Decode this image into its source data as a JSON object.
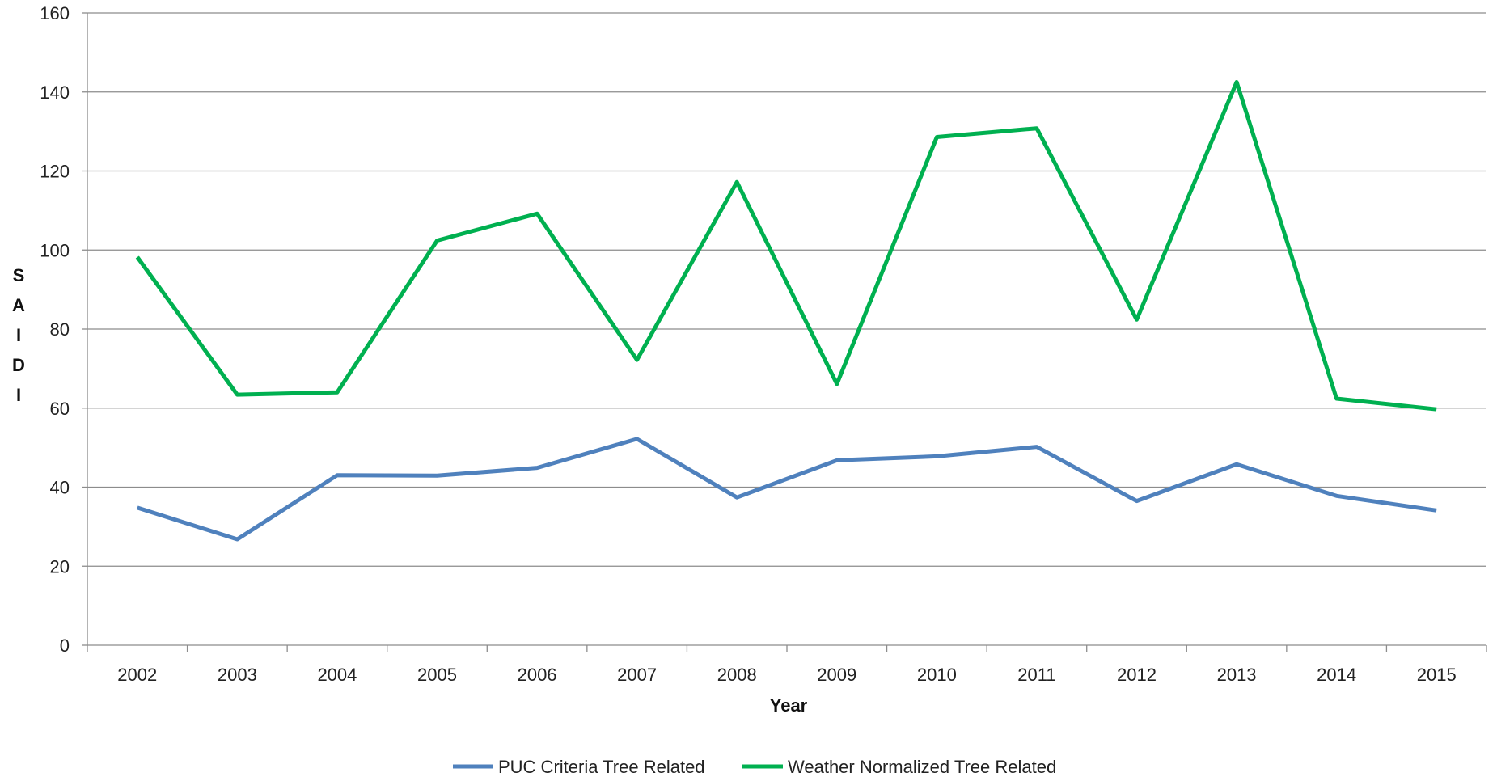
{
  "chart_data": {
    "type": "line",
    "xlabel": "Year",
    "ylabel": "SAIDI",
    "ylim": [
      0,
      160
    ],
    "y_ticks": [
      0,
      20,
      40,
      60,
      80,
      100,
      120,
      140,
      160
    ],
    "grid": true,
    "legend_position": "bottom",
    "categories": [
      "2002",
      "2003",
      "2004",
      "2005",
      "2006",
      "2007",
      "2008",
      "2009",
      "2010",
      "2011",
      "2012",
      "2013",
      "2014",
      "2015"
    ],
    "series": [
      {
        "name": "PUC Criteria Tree Related",
        "color": "#4f81bd",
        "values": [
          34.8,
          26.8,
          43.0,
          42.9,
          44.9,
          52.2,
          37.4,
          46.8,
          47.8,
          50.2,
          36.5,
          45.8,
          37.8,
          34.1
        ]
      },
      {
        "name": "Weather Normalized Tree Related",
        "color": "#00b050",
        "values": [
          98.2,
          63.4,
          64.0,
          102.4,
          109.2,
          72.2,
          117.2,
          66.1,
          128.6,
          130.8,
          82.4,
          142.5,
          62.4,
          59.7
        ]
      }
    ]
  }
}
